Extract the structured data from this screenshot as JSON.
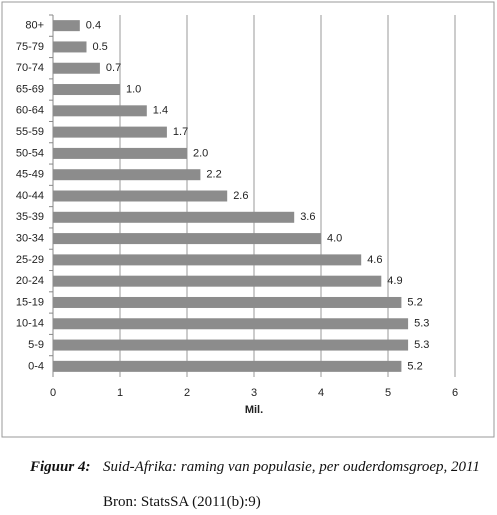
{
  "chart_data": {
    "type": "hbar",
    "categories": [
      "80+",
      "75-79",
      "70-74",
      "65-69",
      "60-64",
      "55-59",
      "50-54",
      "45-49",
      "40-44",
      "35-39",
      "30-34",
      "25-29",
      "20-24",
      "15-19",
      "10-14",
      "5-9",
      "0-4"
    ],
    "values": [
      0.4,
      0.5,
      0.7,
      1.0,
      1.4,
      1.7,
      2.0,
      2.2,
      2.6,
      3.6,
      4.0,
      4.6,
      4.9,
      5.2,
      5.3,
      5.3,
      5.2
    ],
    "value_labels": [
      "0.4",
      "0.5",
      "0.7",
      "1.0",
      "1.4",
      "1.7",
      "2.0",
      "2.2",
      "2.6",
      "3.6",
      "4.0",
      "4.6",
      "4.9",
      "5.2",
      "5.3",
      "5.3",
      "5.2"
    ],
    "color": "#8c8c8c",
    "xlabel": "Mil.",
    "xlim": [
      0,
      6
    ],
    "xticks": [
      0,
      1,
      2,
      3,
      4,
      5,
      6
    ],
    "grid": true
  },
  "caption": {
    "label": "Figuur 4:",
    "text": "Suid-Afrika: raming van populasie, per ouderdomsgroep, 2011",
    "source": "Bron: StatsSA (2011(b):9)"
  }
}
